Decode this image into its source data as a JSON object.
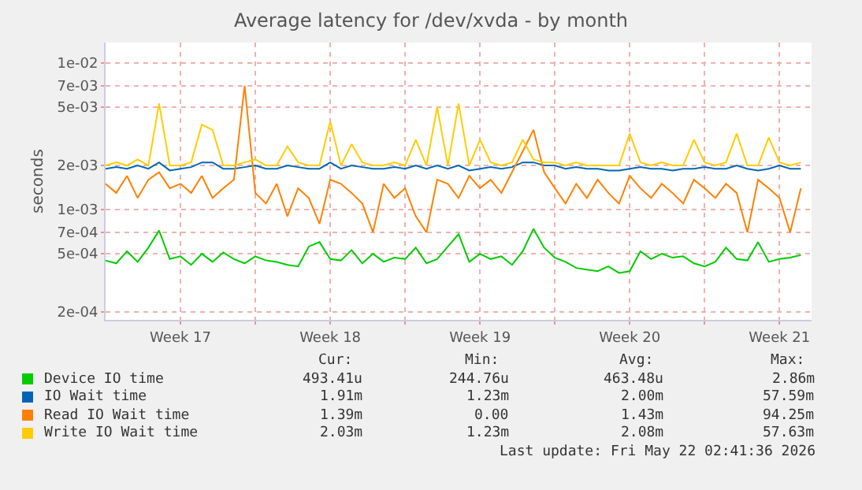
{
  "chart_data": {
    "type": "line",
    "title": "Average latency for /dev/xvda - by month",
    "ylabel": "seconds",
    "log": "y",
    "grid": true,
    "legend": "bottom",
    "line_style": "solid",
    "marker": "none",
    "x": [
      "2026-04-20T00:00",
      "2026-04-20T12:00",
      "2026-04-21T00:00",
      "2026-04-21T12:00",
      "2026-04-22T00:00",
      "2026-04-22T12:00",
      "2026-04-23T00:00",
      "2026-04-23T12:00",
      "2026-04-24T00:00",
      "2026-04-24T12:00",
      "2026-04-25T00:00",
      "2026-04-25T12:00",
      "2026-04-26T00:00",
      "2026-04-26T12:00",
      "2026-04-27T00:00",
      "2026-04-27T12:00",
      "2026-04-28T00:00",
      "2026-04-28T12:00",
      "2026-04-29T00:00",
      "2026-04-29T12:00",
      "2026-04-30T00:00",
      "2026-04-30T12:00",
      "2026-05-01T00:00",
      "2026-05-01T12:00",
      "2026-05-02T00:00",
      "2026-05-02T12:00",
      "2026-05-03T00:00",
      "2026-05-03T12:00",
      "2026-05-04T00:00",
      "2026-05-04T12:00",
      "2026-05-05T00:00",
      "2026-05-05T12:00",
      "2026-05-06T00:00",
      "2026-05-06T12:00",
      "2026-05-07T00:00",
      "2026-05-07T12:00",
      "2026-05-08T00:00",
      "2026-05-08T12:00",
      "2026-05-09T00:00",
      "2026-05-09T12:00",
      "2026-05-10T00:00",
      "2026-05-10T12:00",
      "2026-05-11T00:00",
      "2026-05-11T12:00",
      "2026-05-12T00:00",
      "2026-05-12T12:00",
      "2026-05-13T00:00",
      "2026-05-13T12:00",
      "2026-05-14T00:00",
      "2026-05-14T12:00",
      "2026-05-15T00:00",
      "2026-05-15T12:00",
      "2026-05-16T00:00",
      "2026-05-16T12:00",
      "2026-05-17T00:00",
      "2026-05-17T12:00",
      "2026-05-18T00:00",
      "2026-05-18T12:00",
      "2026-05-19T00:00",
      "2026-05-19T12:00",
      "2026-05-20T00:00",
      "2026-05-20T12:00",
      "2026-05-21T00:00",
      "2026-05-21T12:00",
      "2026-05-22T00:00",
      "2026-05-22T12:00"
    ],
    "xlim": [
      "2026-04-20T00:00",
      "2026-05-23T00:00"
    ],
    "xticks": [
      {
        "value": "2026-04-23T12:00",
        "label": "Week 17"
      },
      {
        "value": "2026-04-27T00:00",
        "label": null
      },
      {
        "value": "2026-04-30T12:00",
        "label": "Week 18"
      },
      {
        "value": "2026-05-04T00:00",
        "label": null
      },
      {
        "value": "2026-05-07T12:00",
        "label": "Week 19"
      },
      {
        "value": "2026-05-11T00:00",
        "label": null
      },
      {
        "value": "2026-05-14T12:00",
        "label": "Week 20"
      },
      {
        "value": "2026-05-18T00:00",
        "label": null
      },
      {
        "value": "2026-05-21T12:00",
        "label": "Week 21"
      }
    ],
    "ylim": [
      0.000177,
      0.0138
    ],
    "yticks": [
      {
        "value": 0.0002,
        "label": "2e-04"
      },
      {
        "value": 0.0005,
        "label": "5e-04"
      },
      {
        "value": 0.0007,
        "label": "7e-04"
      },
      {
        "value": 0.001,
        "label": "1e-03"
      },
      {
        "value": 0.002,
        "label": "2e-03"
      },
      {
        "value": 0.005,
        "label": "5e-03"
      },
      {
        "value": 0.007,
        "label": "7e-03"
      },
      {
        "value": 0.01,
        "label": "1e-02"
      }
    ],
    "series": [
      {
        "name": "Device IO time",
        "color": "#00cc00",
        "values": [
          0.00045,
          0.00043,
          0.00052,
          0.00044,
          0.00055,
          0.00072,
          0.00046,
          0.00048,
          0.00042,
          0.0005,
          0.00044,
          0.00051,
          0.00046,
          0.00043,
          0.00048,
          0.00045,
          0.00044,
          0.00042,
          0.00041,
          0.00056,
          0.0006,
          0.00046,
          0.00045,
          0.00053,
          0.00043,
          0.0005,
          0.00044,
          0.00047,
          0.00046,
          0.00055,
          0.00043,
          0.00046,
          0.00056,
          0.00068,
          0.00044,
          0.0005,
          0.00046,
          0.00048,
          0.00042,
          0.00052,
          0.00074,
          0.00055,
          0.00047,
          0.00044,
          0.0004,
          0.00039,
          0.00038,
          0.00041,
          0.00037,
          0.00038,
          0.00052,
          0.00046,
          0.0005,
          0.00047,
          0.00048,
          0.00043,
          0.00041,
          0.00044,
          0.00055,
          0.00046,
          0.00045,
          0.0006,
          0.00044,
          0.00046,
          0.00047,
          0.00049
        ]
      },
      {
        "name": "IO Wait time",
        "color": "#0066b3",
        "values": [
          0.0019,
          0.00195,
          0.0019,
          0.002,
          0.0019,
          0.0021,
          0.00185,
          0.0019,
          0.00195,
          0.0021,
          0.0021,
          0.0019,
          0.0019,
          0.00195,
          0.002,
          0.0019,
          0.0019,
          0.002,
          0.00195,
          0.0019,
          0.0019,
          0.0021,
          0.0019,
          0.002,
          0.00195,
          0.0019,
          0.0019,
          0.00195,
          0.0019,
          0.002,
          0.0019,
          0.002,
          0.0019,
          0.002,
          0.00185,
          0.0019,
          0.00195,
          0.0019,
          0.00195,
          0.0021,
          0.0021,
          0.002,
          0.002,
          0.0019,
          0.00195,
          0.0019,
          0.0019,
          0.00185,
          0.00185,
          0.0019,
          0.00195,
          0.0019,
          0.0019,
          0.00185,
          0.0019,
          0.0019,
          0.00195,
          0.0019,
          0.0019,
          0.002,
          0.0019,
          0.00185,
          0.0019,
          0.002,
          0.0019,
          0.0019
        ]
      },
      {
        "name": "Read IO Wait time",
        "color": "#ff8000",
        "values": [
          0.0015,
          0.0013,
          0.0017,
          0.0012,
          0.0016,
          0.0018,
          0.0014,
          0.0015,
          0.0013,
          0.0017,
          0.0012,
          0.0014,
          0.0016,
          0.007,
          0.0013,
          0.0011,
          0.0015,
          0.0009,
          0.0014,
          0.0012,
          0.0008,
          0.0016,
          0.0015,
          0.0013,
          0.0011,
          0.0007,
          0.0015,
          0.0012,
          0.0014,
          0.0009,
          0.0007,
          0.0016,
          0.0015,
          0.0012,
          0.0017,
          0.0014,
          0.0016,
          0.0013,
          0.0018,
          0.0025,
          0.0035,
          0.0018,
          0.0014,
          0.0011,
          0.0015,
          0.0012,
          0.0016,
          0.0013,
          0.0011,
          0.0017,
          0.0014,
          0.0012,
          0.0015,
          0.0013,
          0.0011,
          0.0016,
          0.0014,
          0.0012,
          0.0015,
          0.0013,
          0.0007,
          0.0016,
          0.0014,
          0.0012,
          0.0007,
          0.0014
        ]
      },
      {
        "name": "Write IO Wait time",
        "color": "#ffcc00",
        "values": [
          0.002,
          0.0021,
          0.002,
          0.0022,
          0.002,
          0.0053,
          0.002,
          0.002,
          0.0021,
          0.0038,
          0.0035,
          0.002,
          0.002,
          0.0021,
          0.0022,
          0.002,
          0.002,
          0.0027,
          0.0021,
          0.002,
          0.002,
          0.004,
          0.002,
          0.0028,
          0.0021,
          0.002,
          0.002,
          0.0021,
          0.002,
          0.003,
          0.002,
          0.005,
          0.002,
          0.0053,
          0.002,
          0.003,
          0.0021,
          0.002,
          0.0021,
          0.003,
          0.0022,
          0.0021,
          0.0021,
          0.002,
          0.0021,
          0.002,
          0.002,
          0.002,
          0.002,
          0.0033,
          0.0021,
          0.002,
          0.0021,
          0.002,
          0.002,
          0.003,
          0.0021,
          0.002,
          0.0021,
          0.0033,
          0.002,
          0.002,
          0.0031,
          0.0021,
          0.002,
          0.0021
        ]
      }
    ],
    "annotations": [
      "Cur:",
      "Min:",
      "Avg:",
      "Max:",
      "493.41u",
      "244.76u",
      "463.48u",
      "2.86m",
      "1.91m",
      "1.23m",
      "2.00m",
      "57.59m",
      "1.39m",
      "0.00",
      "1.43m",
      "94.25m",
      "2.03m",
      "1.23m",
      "2.08m",
      "57.63m",
      "Last update: Fri May 22 02:41:36 2026"
    ]
  }
}
